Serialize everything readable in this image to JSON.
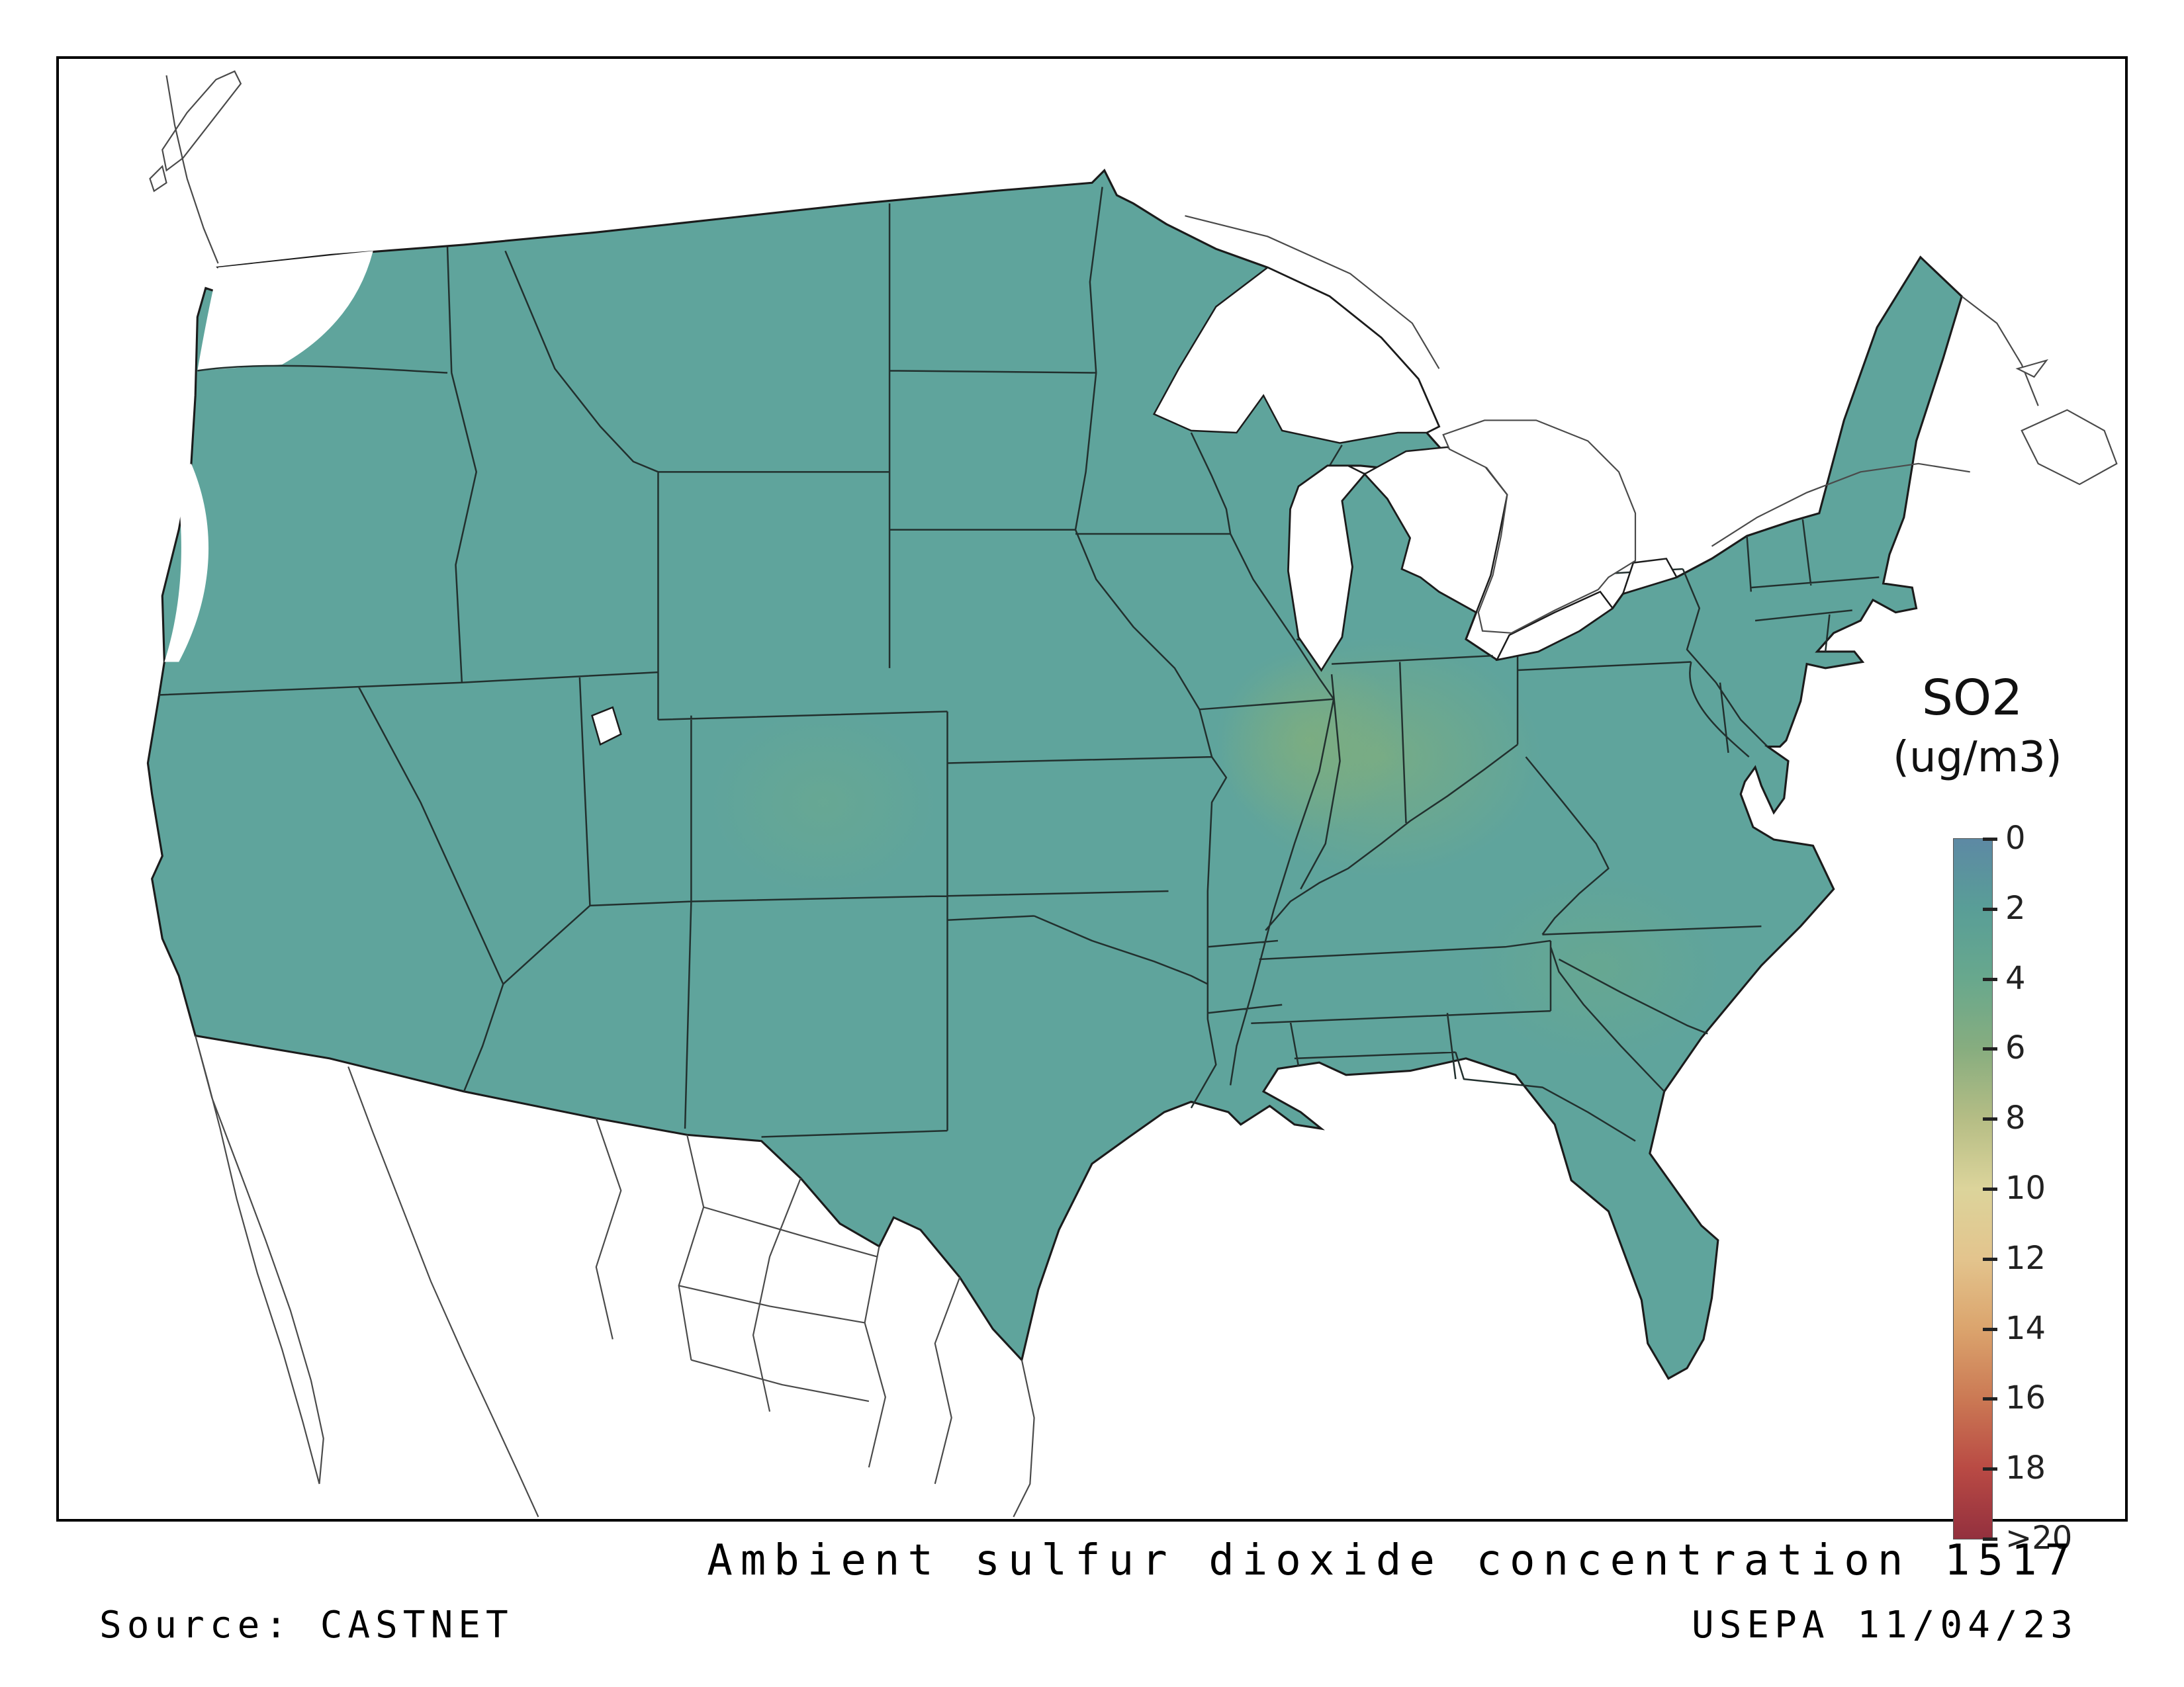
{
  "caption": {
    "title": "Ambient sulfur dioxide concentration 1517",
    "source": "Source: CASTNET",
    "agency": "USEPA 11/04/23"
  },
  "legend": {
    "title": "SO2",
    "subtitle": "(ug/m3)",
    "ticks": [
      "0",
      "2",
      "4",
      "6",
      "8",
      "10",
      "12",
      "14",
      "16",
      "18",
      ">20"
    ],
    "values": [
      0,
      2,
      4,
      6,
      8,
      10,
      12,
      14,
      16,
      18,
      20
    ],
    "stops": [
      "#5d89a4",
      "#599e97",
      "#68a88d",
      "#87ad7f",
      "#b5bd85",
      "#dcd49b",
      "#e3c48d",
      "#dba46d",
      "#cb7954",
      "#b94a44",
      "#93303e"
    ]
  },
  "map": {
    "region": "Continental United States",
    "measured_value_range": "approximately 2-4 ug/m3 across the contiguous US",
    "no_data_areas": "western Washington and northwest Oregon coast"
  },
  "colors": {
    "land": "#5fa49c",
    "frame": "#000000",
    "background": "#ffffff",
    "state_border": "#22302e"
  }
}
